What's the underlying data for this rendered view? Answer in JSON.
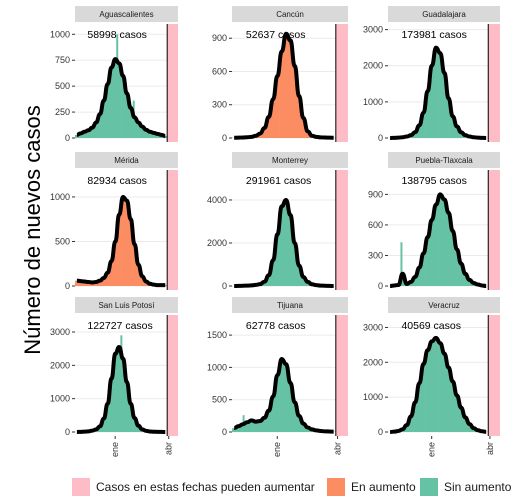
{
  "chart_data": {
    "type": "bar",
    "ylabel": "Número de nuevos casos",
    "x_ticks": [
      "ene",
      "abr"
    ],
    "x_tick_pos": [
      0.39,
      0.91
    ],
    "cutoff_frac": 0.895,
    "colors": {
      "pending": "#fdbcc6",
      "rising": "#fc8d62",
      "stable": "#66c2a5",
      "line": "#000000"
    },
    "legend": [
      {
        "label": "Casos en estas fechas pueden aumentar",
        "key": "pending"
      },
      {
        "label": "En aumento",
        "key": "rising"
      },
      {
        "label": "Sin aumento",
        "key": "stable"
      }
    ],
    "panels": [
      {
        "name": "Aguascalientes",
        "total_label": "58998 casos",
        "status": "stable",
        "yticks": [
          0,
          250,
          500,
          750,
          1000
        ],
        "ymax": 1080,
        "curve": [
          30,
          45,
          60,
          75,
          100,
          150,
          230,
          360,
          520,
          680,
          760,
          720,
          600,
          430,
          290,
          200,
          150,
          110,
          80,
          60,
          50,
          40,
          30,
          20
        ],
        "spikes": [
          [
            0.41,
            1000
          ],
          [
            0.57,
            360
          ]
        ]
      },
      {
        "name": "Cancún",
        "total_label": "52637 casos",
        "status": "rising",
        "yticks": [
          0,
          300,
          600,
          900
        ],
        "ymax": 1010,
        "curve": [
          2,
          3,
          5,
          7,
          10,
          20,
          40,
          90,
          190,
          350,
          560,
          780,
          940,
          880,
          650,
          380,
          180,
          60,
          20,
          10,
          6,
          4,
          3,
          2
        ],
        "spikes": []
      },
      {
        "name": "Guadalajara",
        "total_label": "173981 casos",
        "status": "stable",
        "yticks": [
          0,
          1000,
          2000,
          3000
        ],
        "ymax": 3100,
        "curve": [
          0,
          5,
          10,
          20,
          40,
          80,
          160,
          350,
          700,
          1300,
          2000,
          2500,
          2350,
          1800,
          1100,
          600,
          320,
          160,
          80,
          40,
          20,
          10,
          5,
          0
        ],
        "spikes": []
      },
      {
        "name": "Mérida",
        "total_label": "82934 casos",
        "status": "rising",
        "yticks": [
          0,
          500,
          1000
        ],
        "ymax": 1280,
        "curve": [
          60,
          55,
          50,
          45,
          40,
          45,
          60,
          90,
          150,
          280,
          500,
          800,
          1000,
          960,
          750,
          470,
          240,
          110,
          50,
          25,
          15,
          10,
          10,
          10
        ],
        "spikes": []
      },
      {
        "name": "Monterrey",
        "total_label": "291961 casos",
        "status": "stable",
        "yticks": [
          0,
          2000,
          4000
        ],
        "ymax": 5300,
        "curve": [
          0,
          5,
          10,
          20,
          30,
          50,
          90,
          200,
          500,
          1200,
          2400,
          3700,
          4000,
          3300,
          2000,
          950,
          420,
          190,
          80,
          40,
          20,
          10,
          5,
          0
        ],
        "spikes": []
      },
      {
        "name": "Puebla-Tlaxcala",
        "total_label": "138795 casos",
        "status": "stable",
        "yticks": [
          0,
          300,
          600,
          900
        ],
        "ymax": 1120,
        "curve": [
          0,
          5,
          10,
          120,
          20,
          40,
          90,
          180,
          320,
          480,
          650,
          800,
          900,
          850,
          720,
          540,
          360,
          220,
          120,
          60,
          30,
          15,
          5,
          0
        ],
        "spikes": [
          [
            0.12,
            430
          ]
        ]
      },
      {
        "name": "San Luis Potosí",
        "total_label": "122727 casos",
        "status": "stable",
        "yticks": [
          0,
          1000,
          2000,
          3000
        ],
        "ymax": 3450,
        "curve": [
          0,
          5,
          10,
          20,
          40,
          80,
          170,
          400,
          850,
          1600,
          2350,
          2550,
          2200,
          1500,
          850,
          420,
          190,
          80,
          35,
          15,
          8,
          5,
          3,
          0
        ],
        "spikes": [
          [
            0.45,
            2900
          ]
        ]
      },
      {
        "name": "Tijuana",
        "total_label": "62778 casos",
        "status": "stable",
        "yticks": [
          0,
          500,
          1000,
          1500
        ],
        "ymax": 1780,
        "curve": [
          60,
          90,
          120,
          150,
          180,
          160,
          170,
          220,
          330,
          550,
          880,
          1130,
          1050,
          760,
          460,
          250,
          130,
          70,
          40,
          25,
          15,
          10,
          8,
          5
        ],
        "spikes": [
          [
            0.1,
            260
          ]
        ]
      },
      {
        "name": "Veracruz",
        "total_label": "40569 casos",
        "status": "stable",
        "yticks": [
          0,
          1000,
          2000,
          3000
        ],
        "ymax": 3300,
        "curve": [
          0,
          10,
          30,
          80,
          200,
          450,
          850,
          1400,
          1950,
          2350,
          2600,
          2700,
          2550,
          2250,
          1850,
          1450,
          1050,
          700,
          420,
          230,
          110,
          50,
          20,
          5
        ],
        "spikes": []
      }
    ]
  }
}
